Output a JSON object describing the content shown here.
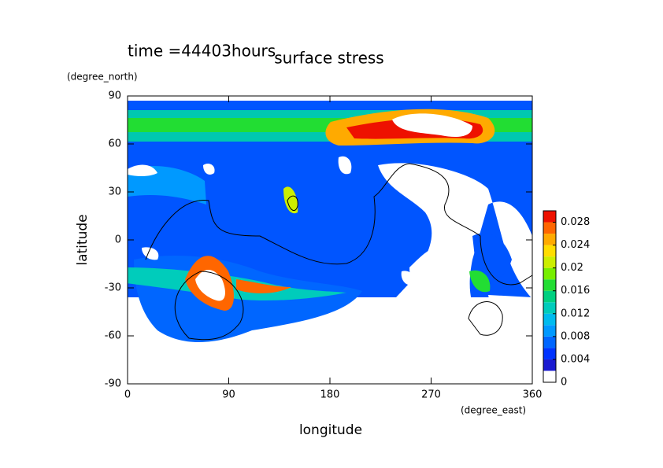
{
  "chart_data": {
    "type": "contour",
    "title": "surface stress",
    "subtitle": "time =44403hours",
    "x_label": "longitude",
    "x_unit": "(degree_east)",
    "y_label": "latitude",
    "y_unit": "(degree_north)",
    "xlim": [
      0,
      360
    ],
    "xticks": [
      0,
      90,
      180,
      270,
      360
    ],
    "ylim": [
      -90,
      90
    ],
    "yticks": [
      -90,
      -60,
      -30,
      0,
      30,
      60,
      90
    ],
    "colorbar": {
      "lim": [
        0,
        0.03
      ],
      "ticks": [
        0,
        0.004,
        0.008,
        0.012,
        0.016,
        0.02,
        0.024,
        0.028
      ],
      "colors": [
        "#ffffff",
        "#1a1ad0",
        "#0033ff",
        "#0066ff",
        "#0099ff",
        "#00bbee",
        "#00ccbb",
        "#00d080",
        "#22dd33",
        "#77ee00",
        "#ccee00",
        "#ffdd00",
        "#ffaa00",
        "#ff6600",
        "#ee1100"
      ]
    }
  }
}
